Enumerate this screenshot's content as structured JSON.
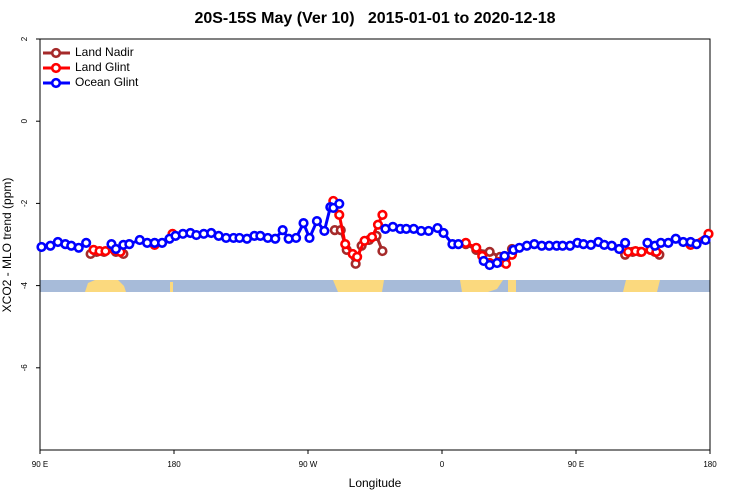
{
  "chart_data": {
    "type": "line",
    "title": "20S-15S May (Ver 10)   2015-01-01 to 2020-12-18",
    "x_label": "Longitude",
    "y_label": "XCO2 - MLO trend (ppm)",
    "xlim": [
      90,
      540
    ],
    "xticks": [
      {
        "value": 90,
        "label": "90 E"
      },
      {
        "value": 180,
        "label": "180"
      },
      {
        "value": 270,
        "label": "90 W"
      },
      {
        "value": 360,
        "label": "0"
      },
      {
        "value": 450,
        "label": "90 E"
      },
      {
        "value": 540,
        "label": "180"
      }
    ],
    "ylim": [
      -8,
      2
    ],
    "yticks": [
      -6,
      -4,
      -2,
      0,
      2
    ],
    "legend": "top-left",
    "series": [
      {
        "name": "Land Nadir",
        "color": "#a52a2a",
        "x": [
          124,
          128,
          133,
          null,
          141,
          146,
          null,
          288,
          292,
          296,
          302,
          306,
          311,
          316,
          320,
          null,
          376,
          383,
          392,
          399,
          402,
          407,
          null,
          483,
          488,
          493,
          503,
          506
        ],
        "values": [
          -3.23,
          -3.18,
          -3.18,
          null,
          -3.18,
          -3.23,
          null,
          -2.65,
          -2.65,
          -3.13,
          -3.47,
          -3.03,
          -2.89,
          -2.79,
          -3.16,
          null,
          -2.99,
          -3.13,
          -3.18,
          -3.3,
          -3.42,
          -3.11,
          null,
          -3.25,
          -3.18,
          -3.18,
          -3.18,
          -3.25
        ]
      },
      {
        "name": "Land Glint",
        "color": "#ff0000",
        "x": [
          126,
          130,
          134,
          140,
          144,
          null,
          167,
          null,
          179,
          null,
          287,
          291,
          295,
          300,
          303,
          308,
          313,
          317,
          320,
          null,
          376,
          383,
          387,
          392,
          399,
          403,
          407,
          null,
          485,
          490,
          494,
          500,
          504,
          null,
          527,
          539
        ],
        "values": [
          -3.13,
          -3.16,
          -3.16,
          -3.13,
          -3.18,
          null,
          -3.01,
          null,
          -2.74,
          null,
          -1.94,
          -2.28,
          -2.99,
          -3.23,
          -3.3,
          -2.91,
          -2.82,
          -2.52,
          -2.28,
          null,
          -2.96,
          -3.08,
          -3.28,
          -3.45,
          -3.42,
          -3.47,
          -3.25,
          null,
          -3.18,
          -3.16,
          -3.18,
          -3.13,
          -3.18,
          null,
          -3.01,
          -2.74
        ]
      },
      {
        "name": "Ocean Glint",
        "color": "#0000ff",
        "x": [
          91,
          97,
          102,
          107,
          111,
          116,
          121,
          null,
          138,
          141,
          146,
          150,
          157,
          162,
          167,
          172,
          177,
          181,
          186,
          191,
          195,
          200,
          205,
          210,
          215,
          220,
          224,
          229,
          234,
          238,
          243,
          248,
          253,
          257,
          262,
          267,
          271,
          276,
          281,
          285,
          287,
          291,
          null,
          322,
          327,
          332,
          336,
          341,
          346,
          351,
          357,
          361,
          367,
          371,
          null,
          388,
          392,
          397,
          402,
          408,
          412,
          417,
          422,
          427,
          432,
          437,
          441,
          446,
          451,
          455,
          460,
          465,
          469,
          474,
          479,
          483,
          null,
          498,
          503,
          507,
          512,
          517,
          522,
          527,
          531,
          537
        ],
        "values": [
          -3.06,
          -3.03,
          -2.94,
          -2.99,
          -3.03,
          -3.08,
          -2.96,
          null,
          -2.99,
          -3.11,
          -3.01,
          -2.99,
          -2.89,
          -2.96,
          -2.96,
          -2.96,
          -2.86,
          -2.79,
          -2.74,
          -2.72,
          -2.77,
          -2.74,
          -2.72,
          -2.79,
          -2.84,
          -2.84,
          -2.84,
          -2.86,
          -2.79,
          -2.79,
          -2.84,
          -2.86,
          -2.65,
          -2.86,
          -2.84,
          -2.48,
          -2.84,
          -2.43,
          -2.67,
          -2.09,
          -2.11,
          -2.01,
          null,
          -2.62,
          -2.57,
          -2.62,
          -2.62,
          -2.62,
          -2.67,
          -2.67,
          -2.6,
          -2.72,
          -2.99,
          -2.99,
          null,
          -3.4,
          -3.5,
          -3.45,
          -3.28,
          -3.13,
          -3.08,
          -3.03,
          -2.99,
          -3.03,
          -3.03,
          -3.03,
          -3.03,
          -3.03,
          -2.96,
          -2.99,
          -3.01,
          -2.94,
          -3.01,
          -3.03,
          -3.11,
          -2.96,
          null,
          -2.96,
          -3.03,
          -2.96,
          -2.96,
          -2.86,
          -2.94,
          -2.94,
          -2.99,
          -2.89
        ]
      }
    ]
  }
}
